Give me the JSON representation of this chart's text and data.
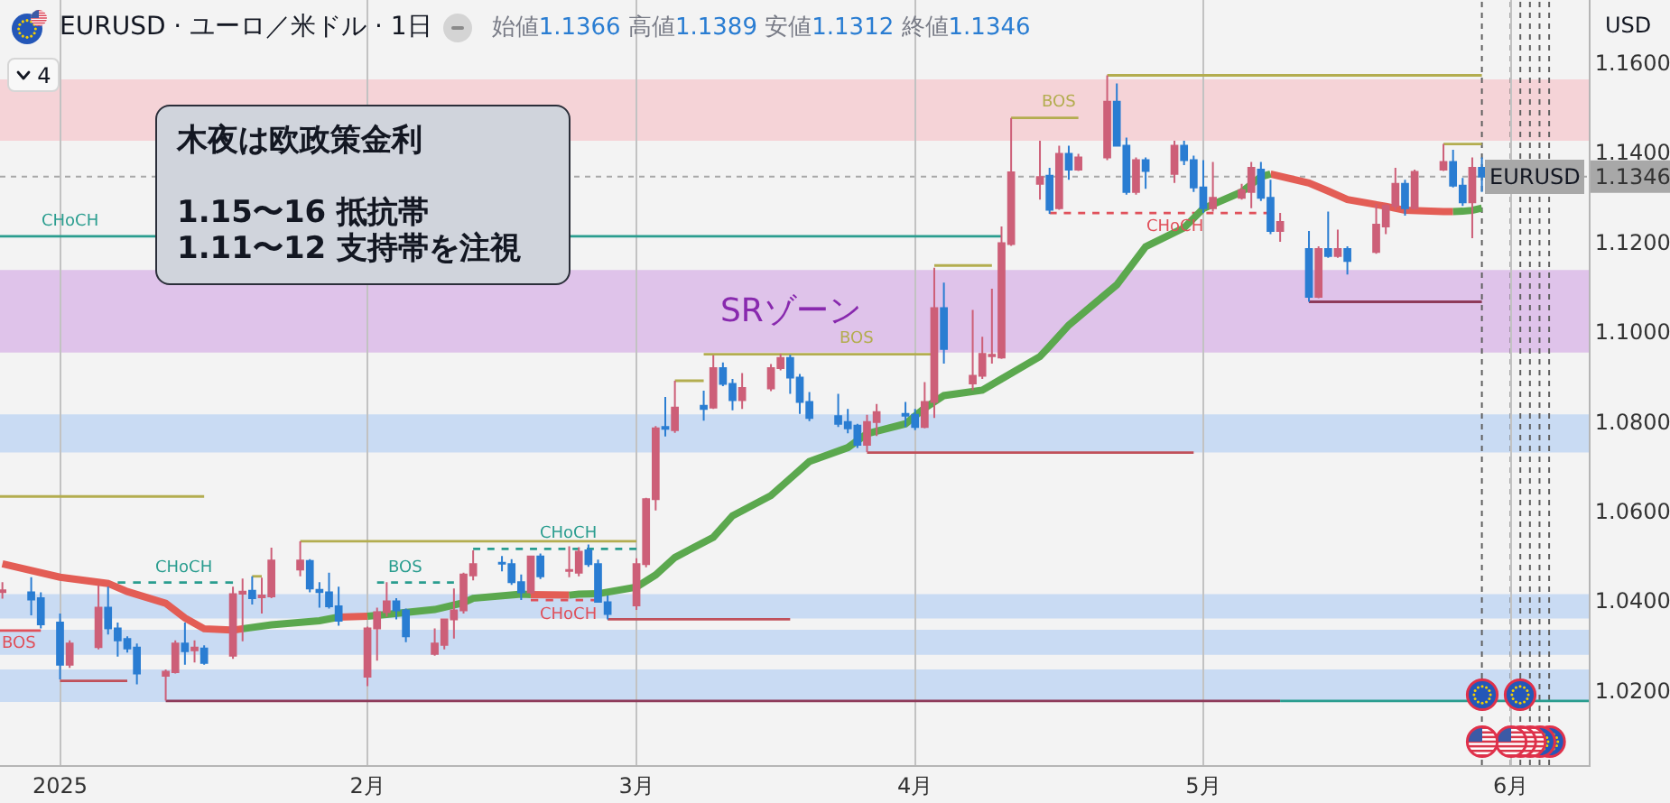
{
  "chart_data": {
    "type": "candlestick",
    "title": "EURUSD · ユーロ／米ドル · 1日",
    "subtitle": "始値1.1366 高値1.1389 安値1.1312 終値1.1346",
    "ylabel": "USD",
    "x": [
      "2024-12-27",
      "2024-12-30",
      "2024-12-31",
      "2025-01-02",
      "2025-01-03",
      "2025-01-06",
      "2025-01-07",
      "2025-01-08",
      "2025-01-09",
      "2025-01-10",
      "2025-01-13",
      "2025-01-14",
      "2025-01-15",
      "2025-01-16",
      "2025-01-17",
      "2025-01-20",
      "2025-01-21",
      "2025-01-22",
      "2025-01-23",
      "2025-01-24",
      "2025-01-27",
      "2025-01-28",
      "2025-01-29",
      "2025-01-30",
      "2025-01-31",
      "2025-02-03",
      "2025-02-04",
      "2025-02-05",
      "2025-02-06",
      "2025-02-07",
      "2025-02-10",
      "2025-02-11",
      "2025-02-12",
      "2025-02-13",
      "2025-02-14",
      "2025-02-17",
      "2025-02-18",
      "2025-02-19",
      "2025-02-20",
      "2025-02-21",
      "2025-02-24",
      "2025-02-25",
      "2025-02-26",
      "2025-02-27",
      "2025-02-28",
      "2025-03-03",
      "2025-03-04",
      "2025-03-05",
      "2025-03-06",
      "2025-03-07",
      "2025-03-10",
      "2025-03-11",
      "2025-03-12",
      "2025-03-13",
      "2025-03-14",
      "2025-03-17",
      "2025-03-18",
      "2025-03-19",
      "2025-03-20",
      "2025-03-21",
      "2025-03-24",
      "2025-03-25",
      "2025-03-26",
      "2025-03-27",
      "2025-03-28",
      "2025-03-31",
      "2025-04-01",
      "2025-04-02",
      "2025-04-03",
      "2025-04-04",
      "2025-04-07",
      "2025-04-08",
      "2025-04-09",
      "2025-04-10",
      "2025-04-11",
      "2025-04-14",
      "2025-04-15",
      "2025-04-16",
      "2025-04-17",
      "2025-04-18",
      "2025-04-21",
      "2025-04-22",
      "2025-04-23",
      "2025-04-24",
      "2025-04-25",
      "2025-04-28",
      "2025-04-29",
      "2025-04-30",
      "2025-05-01",
      "2025-05-02",
      "2025-05-05",
      "2025-05-06",
      "2025-05-07",
      "2025-05-08",
      "2025-05-09",
      "2025-05-12",
      "2025-05-13",
      "2025-05-14",
      "2025-05-15",
      "2025-05-16",
      "2025-05-19",
      "2025-05-20",
      "2025-05-21",
      "2025-05-22",
      "2025-05-23",
      "2025-05-26",
      "2025-05-27",
      "2025-05-28",
      "2025-05-29",
      "2025-05-30"
    ],
    "ohlc": [
      [
        1.042,
        1.0442,
        1.0405,
        1.0424
      ],
      [
        1.0419,
        1.0453,
        1.0368,
        1.0403
      ],
      [
        1.0406,
        1.0419,
        1.0339,
        1.0348
      ],
      [
        1.0352,
        1.0372,
        1.0225,
        1.0258
      ],
      [
        1.0258,
        1.0312,
        1.0251,
        1.0305
      ],
      [
        1.0297,
        1.0435,
        1.0292,
        1.0385
      ],
      [
        1.0385,
        1.0432,
        1.0325,
        1.0339
      ],
      [
        1.0339,
        1.0352,
        1.0276,
        1.0312
      ],
      [
        1.0315,
        1.0321,
        1.0285,
        1.0294
      ],
      [
        1.0296,
        1.0305,
        1.0214,
        1.0238
      ],
      [
        1.0233,
        1.0247,
        1.0178,
        1.0242
      ],
      [
        1.0241,
        1.0312,
        1.0238,
        1.0305
      ],
      [
        1.0305,
        1.0352,
        1.0258,
        1.0288
      ],
      [
        1.029,
        1.0312,
        1.0263,
        1.0296
      ],
      [
        1.0294,
        1.0301,
        1.0258,
        1.0262
      ],
      [
        1.0278,
        1.0432,
        1.0271,
        1.0415
      ],
      [
        1.0416,
        1.045,
        1.031,
        1.0421
      ],
      [
        1.0423,
        1.0455,
        1.0392,
        1.0406
      ],
      [
        1.0408,
        1.0452,
        1.0372,
        1.0412
      ],
      [
        1.041,
        1.0519,
        1.0406,
        1.049
      ],
      [
        1.047,
        1.0533,
        1.0455,
        1.049
      ],
      [
        1.0489,
        1.0493,
        1.0419,
        1.0428
      ],
      [
        1.0425,
        1.0442,
        1.0385,
        1.042
      ],
      [
        1.0419,
        1.0463,
        1.0383,
        1.0388
      ],
      [
        1.0388,
        1.0432,
        1.0345,
        1.0356
      ],
      [
        1.0231,
        1.0343,
        1.021,
        1.0339
      ],
      [
        1.0339,
        1.0385,
        1.0267,
        1.0375
      ],
      [
        1.0375,
        1.0442,
        1.0365,
        1.0399
      ],
      [
        1.0399,
        1.0406,
        1.0359,
        1.0379
      ],
      [
        1.0379,
        1.0383,
        1.0308,
        1.0321
      ],
      [
        1.0282,
        1.0339,
        1.0278,
        1.0305
      ],
      [
        1.0302,
        1.0361,
        1.0292,
        1.0359
      ],
      [
        1.0359,
        1.0428,
        1.0316,
        1.0379
      ],
      [
        1.0379,
        1.0463,
        1.0372,
        1.0459
      ],
      [
        1.0457,
        1.0513,
        1.0446,
        1.0482
      ],
      [
        1.0485,
        1.05,
        1.0466,
        1.0483
      ],
      [
        1.0482,
        1.0493,
        1.0436,
        1.0442
      ],
      [
        1.0442,
        1.0459,
        1.0402,
        1.0419
      ],
      [
        1.0419,
        1.0499,
        1.0415,
        1.0499
      ],
      [
        1.0499,
        1.0506,
        1.0449,
        1.0455
      ],
      [
        1.0467,
        1.0522,
        1.0453,
        1.0469
      ],
      [
        1.0463,
        1.052,
        1.0455,
        1.051
      ],
      [
        1.0513,
        1.0526,
        1.0476,
        1.0482
      ],
      [
        1.0482,
        1.0492,
        1.0396,
        1.0398
      ],
      [
        1.0397,
        1.0412,
        1.0359,
        1.0371
      ],
      [
        1.039,
        1.0495,
        1.038,
        1.0482
      ],
      [
        1.0482,
        1.063,
        1.0475,
        1.0627
      ],
      [
        1.0627,
        1.079,
        1.0602,
        1.0785
      ],
      [
        1.0788,
        1.0855,
        1.0767,
        1.0784
      ],
      [
        1.0781,
        1.0891,
        1.0775,
        1.0831
      ],
      [
        1.0835,
        1.0869,
        1.0802,
        1.0828
      ],
      [
        1.0831,
        1.0948,
        1.0828,
        1.0919
      ],
      [
        1.0919,
        1.0932,
        1.0879,
        1.0884
      ],
      [
        1.0884,
        1.0895,
        1.0825,
        1.0848
      ],
      [
        1.0848,
        1.0908,
        1.0828,
        1.0875
      ],
      [
        1.0874,
        1.0928,
        1.0868,
        1.0919
      ],
      [
        1.0919,
        1.0951,
        1.0914,
        1.0942
      ],
      [
        1.0942,
        1.0949,
        1.0862,
        1.0898
      ],
      [
        1.0898,
        1.0906,
        1.0817,
        1.0844
      ],
      [
        1.0844,
        1.0866,
        1.0801,
        1.0808
      ],
      [
        1.0812,
        1.0862,
        1.0788,
        1.0795
      ],
      [
        1.0799,
        1.0828,
        1.0774,
        1.0785
      ],
      [
        1.0791,
        1.0795,
        1.0741,
        1.0748
      ],
      [
        1.0748,
        1.0815,
        1.0732,
        1.0799
      ],
      [
        1.0799,
        1.0839,
        1.0768,
        1.0821
      ],
      [
        1.0817,
        1.0844,
        1.0788,
        1.0813
      ],
      [
        1.0815,
        1.0828,
        1.0781,
        1.0788
      ],
      [
        1.0788,
        1.0888,
        1.0785,
        1.0844
      ],
      [
        1.0844,
        1.1143,
        1.0808,
        1.1053
      ],
      [
        1.1053,
        1.111,
        1.0929,
        1.0962
      ],
      [
        1.0885,
        1.1049,
        1.087,
        1.0902
      ],
      [
        1.0902,
        1.0989,
        1.0895,
        1.0951
      ],
      [
        1.0946,
        1.1096,
        1.0929,
        1.0949
      ],
      [
        1.0943,
        1.1235,
        1.094,
        1.1198
      ],
      [
        1.1196,
        1.1477,
        1.1192,
        1.1356
      ],
      [
        1.133,
        1.1426,
        1.1295,
        1.1345
      ],
      [
        1.1348,
        1.1366,
        1.1263,
        1.1272
      ],
      [
        1.1276,
        1.1415,
        1.1272,
        1.1397
      ],
      [
        1.1397,
        1.1415,
        1.1339,
        1.1362
      ],
      [
        1.1362,
        1.1397,
        1.1359,
        1.1389
      ],
      [
        1.1389,
        1.1572,
        1.1383,
        1.1513
      ],
      [
        1.1513,
        1.1554,
        1.1413,
        1.1415
      ],
      [
        1.1415,
        1.1433,
        1.1306,
        1.1312
      ],
      [
        1.1312,
        1.1389,
        1.1306,
        1.1383
      ],
      [
        1.1383,
        1.1389,
        1.1319,
        1.1359
      ],
      [
        1.1352,
        1.1426,
        1.1332,
        1.1415
      ],
      [
        1.1415,
        1.1426,
        1.1372,
        1.1383
      ],
      [
        1.1383,
        1.1393,
        1.1312,
        1.1322
      ],
      [
        1.1322,
        1.1383,
        1.1265,
        1.1276
      ],
      [
        1.1276,
        1.1379,
        1.1268,
        1.1299
      ],
      [
        1.1299,
        1.133,
        1.1295,
        1.1316
      ],
      [
        1.1312,
        1.1379,
        1.1276,
        1.1366
      ],
      [
        1.1362,
        1.1379,
        1.1292,
        1.1299
      ],
      [
        1.1299,
        1.1339,
        1.1218,
        1.1225
      ],
      [
        1.1225,
        1.1265,
        1.1201,
        1.1245
      ],
      [
        1.1185,
        1.1225,
        1.1067,
        1.1078
      ],
      [
        1.1078,
        1.1191,
        1.1075,
        1.1185
      ],
      [
        1.1185,
        1.1268,
        1.1165,
        1.1169
      ],
      [
        1.1169,
        1.1228,
        1.1165,
        1.1185
      ],
      [
        1.1185,
        1.1191,
        1.1128,
        1.1158
      ],
      [
        1.1178,
        1.1285,
        1.1174,
        1.1239
      ],
      [
        1.1235,
        1.1285,
        1.1218,
        1.1281
      ],
      [
        1.1281,
        1.1366,
        1.1272,
        1.133
      ],
      [
        1.133,
        1.1339,
        1.1259,
        1.1276
      ],
      [
        1.1276,
        1.1362,
        1.1272,
        1.1357
      ],
      [
        1.1362,
        1.1419,
        1.1359,
        1.1379
      ],
      [
        1.1379,
        1.1406,
        1.1322,
        1.1326
      ],
      [
        1.1326,
        1.1343,
        1.1281,
        1.1289
      ],
      [
        1.1289,
        1.1389,
        1.1209,
        1.1366
      ],
      [
        1.1366,
        1.1389,
        1.1312,
        1.1346
      ]
    ],
    "colors": [
      "#cd5f78",
      "#2a7dd2",
      "#2a7dd2",
      "#2a7dd2",
      "#cd5f78",
      "#cd5f78",
      "#2a7dd2",
      "#2a7dd2",
      "#2a7dd2",
      "#2a7dd2",
      "#cd5f78",
      "#cd5f78",
      "#2a7dd2",
      "#cd5f78",
      "#2a7dd2",
      "#cd5f78",
      "#cd5f78",
      "#2a7dd2",
      "#cd5f78",
      "#cd5f78",
      "#cd5f78",
      "#2a7dd2",
      "#2a7dd2",
      "#2a7dd2",
      "#2a7dd2",
      "#cd5f78",
      "#cd5f78",
      "#cd5f78",
      "#2a7dd2",
      "#2a7dd2",
      "#cd5f78",
      "#cd5f78",
      "#cd5f78",
      "#cd5f78",
      "#cd5f78",
      "#2a7dd2",
      "#2a7dd2",
      "#2a7dd2",
      "#cd5f78",
      "#2a7dd2",
      "#cd5f78",
      "#cd5f78",
      "#2a7dd2",
      "#2a7dd2",
      "#2a7dd2",
      "#cd5f78",
      "#cd5f78",
      "#cd5f78",
      "#2a7dd2",
      "#cd5f78",
      "#2a7dd2",
      "#cd5f78",
      "#2a7dd2",
      "#2a7dd2",
      "#cd5f78",
      "#cd5f78",
      "#cd5f78",
      "#2a7dd2",
      "#2a7dd2",
      "#2a7dd2",
      "#2a7dd2",
      "#2a7dd2",
      "#2a7dd2",
      "#cd5f78",
      "#cd5f78",
      "#2a7dd2",
      "#2a7dd2",
      "#cd5f78",
      "#cd5f78",
      "#2a7dd2",
      "#cd5f78",
      "#cd5f78",
      "#cd5f78",
      "#cd5f78",
      "#cd5f78",
      "#cd5f78",
      "#2a7dd2",
      "#cd5f78",
      "#2a7dd2",
      "#cd5f78",
      "#cd5f78",
      "#2a7dd2",
      "#2a7dd2",
      "#cd5f78",
      "#2a7dd2",
      "#cd5f78",
      "#2a7dd2",
      "#2a7dd2",
      "#2a7dd2",
      "#cd5f78",
      "#cd5f78",
      "#cd5f78",
      "#2a7dd2",
      "#2a7dd2",
      "#cd5f78",
      "#2a7dd2",
      "#cd5f78",
      "#2a7dd2",
      "#cd5f78",
      "#2a7dd2",
      "#cd5f78",
      "#cd5f78",
      "#cd5f78",
      "#2a7dd2",
      "#cd5f78",
      "#cd5f78",
      "#2a7dd2",
      "#2a7dd2",
      "#cd5f78",
      "#2a7dd2"
    ],
    "series": [
      {
        "type": "line",
        "color": "#e35d55",
        "x": [
          "2024-12-27",
          "2025-01-02",
          "2025-01-07",
          "2025-01-09",
          "2025-01-13",
          "2025-01-15",
          "2025-01-17",
          "2025-01-20",
          "2025-01-21",
          "2025-01-24",
          "2025-01-31",
          "2025-02-03",
          "2025-02-12",
          "2025-02-20",
          "2025-02-24",
          "2025-04-01",
          "2025-05-08",
          "2025-05-12",
          "2025-05-14",
          "2025-05-16",
          "2025-05-20",
          "2025-05-22",
          "2025-05-26",
          "2025-05-27"
        ],
        "values": [
          1.0483,
          1.0453,
          1.0439,
          1.0421,
          1.0395,
          1.0362,
          1.0338,
          1.0335,
          1.0338,
          null,
          1.0364,
          1.0366,
          null,
          1.0414,
          1.0413,
          null,
          1.1352,
          1.1332,
          1.1314,
          1.1295,
          1.128,
          1.1271,
          1.1268,
          1.1268
        ]
      },
      {
        "type": "line",
        "color": "#5ba84e",
        "x": [
          "2025-01-21",
          "2025-01-24",
          "2025-01-29",
          "2025-01-31",
          "2025-02-01",
          "2025-02-03",
          "2025-02-05",
          "2025-02-10",
          "2025-02-13",
          "2025-02-14",
          "2025-02-19",
          "2025-02-20",
          "2025-02-21",
          "2025-02-24",
          "2025-02-25",
          "2025-02-27",
          "2025-03-03",
          "2025-03-05",
          "2025-03-07",
          "2025-03-11",
          "2025-03-13",
          "2025-03-17",
          "2025-03-19",
          "2025-03-21",
          "2025-03-25",
          "2025-03-27",
          "2025-03-31",
          "2025-04-02",
          "2025-04-04",
          "2025-04-08",
          "2025-04-10",
          "2025-04-14",
          "2025-04-15",
          "2025-04-17",
          "2025-04-22",
          "2025-04-25",
          "2025-04-29",
          "2025-05-01",
          "2025-05-05",
          "2025-05-07",
          "2025-05-08",
          "2025-05-19",
          "2025-05-27",
          "2025-05-28",
          "2025-05-29",
          "2025-05-30"
        ],
        "values": [
          1.0338,
          1.0347,
          1.0356,
          1.0364,
          null,
          1.0366,
          1.037,
          1.0381,
          1.0396,
          1.0406,
          1.0415,
          1.0414,
          null,
          1.0413,
          1.0415,
          1.0416,
          1.0431,
          1.0458,
          1.0497,
          1.0542,
          1.059,
          1.0635,
          1.0673,
          1.0711,
          1.0742,
          1.0773,
          1.0795,
          1.083,
          1.0858,
          1.087,
          1.0895,
          1.0945,
          1.0968,
          1.1015,
          1.1105,
          1.119,
          1.1232,
          1.1275,
          1.1312,
          1.1346,
          1.1352,
          null,
          1.1268,
          1.1269,
          1.1271,
          1.1276
        ]
      },
      {
        "type": "line",
        "color": "#2a9d8f",
        "x": [
          "2024-12-26T18:00",
          "2025-04-10"
        ],
        "values": [
          1.1213,
          1.1213
        ]
      },
      {
        "type": "line",
        "color": "#b3ad4f",
        "x": [
          "2025-04-21",
          "2025-05-30"
        ],
        "values": [
          1.1572,
          1.1572
        ]
      },
      {
        "type": "line",
        "color": "#b3ad4f",
        "x": [
          "2025-04-11",
          "2025-04-18"
        ],
        "values": [
          1.1477,
          1.1477
        ]
      },
      {
        "type": "line",
        "color": "#b3ad4f",
        "x": [
          "2025-05-26",
          "2025-05-30"
        ],
        "values": [
          1.1419,
          1.1419
        ]
      },
      {
        "type": "line",
        "color": "#e0505a",
        "line_style": "dashed",
        "x": [
          "2025-04-15",
          "2025-05-08"
        ],
        "values": [
          1.1265,
          1.1265
        ]
      },
      {
        "type": "line",
        "color": "#8e3b5a",
        "x": [
          "2025-05-12",
          "2025-05-30"
        ],
        "values": [
          1.1067,
          1.1067
        ]
      },
      {
        "type": "line",
        "color": "#b3ad4f",
        "x": [
          "2025-04-03",
          "2025-04-09"
        ],
        "values": [
          1.1148,
          1.1148
        ]
      },
      {
        "type": "line",
        "color": "#b3ad4f",
        "x": [
          "2025-03-10",
          "2025-04-03"
        ],
        "values": [
          1.095,
          1.095
        ]
      },
      {
        "type": "line",
        "color": "#b3ad4f",
        "x": [
          "2025-03-07",
          "2025-03-10"
        ],
        "values": [
          1.0891,
          1.0891
        ]
      },
      {
        "type": "line",
        "color": "#c0505a",
        "x": [
          "2025-03-27",
          "2025-04-30"
        ],
        "values": [
          1.0731,
          1.0731
        ]
      },
      {
        "type": "line",
        "color": "#c0505a",
        "x": [
          "2025-02-28",
          "2025-03-19"
        ],
        "values": [
          1.0359,
          1.0359
        ]
      },
      {
        "type": "line",
        "color": "#8e3b5a",
        "x": [
          "2025-01-13",
          "2025-05-09"
        ],
        "values": [
          1.0177,
          1.0177
        ]
      },
      {
        "type": "line",
        "color": "#2a9d8f",
        "x": [
          "2025-05-09",
          "2025-06-10T03:00"
        ],
        "values": [
          1.0177,
          1.0177
        ]
      },
      {
        "type": "line",
        "color": "#c0505a",
        "x": [
          "2025-01-02",
          "2025-01-09"
        ],
        "values": [
          1.0222,
          1.0222
        ]
      },
      {
        "type": "line",
        "color": "#e0505a",
        "x": [
          "2024-12-26T18:00",
          "2024-12-31"
        ],
        "values": [
          1.0334,
          1.0334
        ]
      },
      {
        "type": "line",
        "color": "#2a9d8f",
        "line_style": "dashed",
        "x": [
          "2025-01-08",
          "2025-01-20"
        ],
        "values": [
          1.0441,
          1.0441
        ]
      },
      {
        "type": "line",
        "color": "#2a9d8f",
        "line_style": "dashed",
        "x": [
          "2025-02-04",
          "2025-02-12"
        ],
        "values": [
          1.0441,
          1.0441
        ]
      },
      {
        "type": "line",
        "color": "#b3ad4f",
        "x": [
          "2024-12-26T18:00",
          "2025-01-17"
        ],
        "values": [
          1.0633,
          1.0633
        ]
      },
      {
        "type": "line",
        "color": "#b3ad4f",
        "x": [
          "2025-01-27",
          "2025-03-03"
        ],
        "values": [
          1.0533,
          1.0533
        ]
      },
      {
        "type": "line",
        "color": "#b3ad4f",
        "x": [
          "2025-01-22",
          "2025-01-23"
        ],
        "values": [
          1.0455,
          1.0455
        ]
      },
      {
        "type": "line",
        "color": "#2a9d8f",
        "line_style": "dashed",
        "x": [
          "2025-02-14",
          "2025-03-03"
        ],
        "values": [
          1.0516,
          1.0516
        ]
      },
      {
        "type": "line",
        "color": "#e0505a",
        "line_style": "dashed",
        "x": [
          "2025-02-20",
          "2025-02-27"
        ],
        "values": [
          1.0402,
          1.0402
        ]
      }
    ],
    "bands": [
      {
        "axis": "y",
        "from": 1.1426,
        "to": 1.1563,
        "color": "#f5d3d7"
      },
      {
        "axis": "y",
        "from": 1.0954,
        "to": 1.1138,
        "color": "#dfc3ea",
        "label": "SRゾーン"
      },
      {
        "axis": "y",
        "from": 1.0731,
        "to": 1.0816,
        "color": "#c9dbf3"
      },
      {
        "axis": "y",
        "from": 1.0361,
        "to": 1.0415,
        "color": "#c9dbf3"
      },
      {
        "axis": "y",
        "from": 1.028,
        "to": 1.0336,
        "color": "#c9dbf3"
      },
      {
        "axis": "y",
        "from": 1.0175,
        "to": 1.0247,
        "color": "#c9dbf3"
      }
    ],
    "ref_lines": [
      {
        "axis": "y",
        "value": 1.1346,
        "label": "EURUSD",
        "color": "#a8a8a8",
        "line_style": "dotted"
      },
      {
        "axis": "x",
        "value": "2025-05-30",
        "color": "#606060",
        "line_style": "dotted"
      },
      {
        "axis": "x",
        "value": "2025-06-02",
        "color": "#606060",
        "line_style": "dotted"
      },
      {
        "axis": "x",
        "value": "2025-06-03",
        "color": "#606060",
        "line_style": "dotted"
      },
      {
        "axis": "x",
        "value": "2025-06-04",
        "color": "#606060",
        "line_style": "dotted"
      },
      {
        "axis": "x",
        "value": "2025-06-05",
        "color": "#606060",
        "line_style": "dotted"
      },
      {
        "axis": "x",
        "value": "2025-06-06",
        "color": "#606060",
        "line_style": "dotted"
      }
    ],
    "annotations": [
      "木夜は欧政策金利\n\n1.15〜16 抵抗帯\n1.11〜12 支持帯を注視",
      "4",
      {
        "text": "CHoCH",
        "x": "2025-01-03",
        "y": 1.1213
      },
      {
        "text": "BOS",
        "x": "2025-04-16",
        "y": 1.1477
      },
      {
        "text": "CHoCH",
        "x": "2025-04-28",
        "y": 1.1265
      },
      {
        "text": "BOS",
        "x": "2025-03-26",
        "y": 1.095
      },
      {
        "text": "CHoCH",
        "x": "2025-01-15",
        "y": 1.0441
      },
      {
        "text": "BOS",
        "x": "2025-02-07",
        "y": 1.0441
      },
      {
        "text": "CHoCH",
        "x": "2025-02-24",
        "y": 1.0516
      },
      {
        "text": "CHoCH",
        "x": "2025-02-24",
        "y": 1.0402
      },
      {
        "text": "BOS",
        "x": "2024-12-27",
        "y": 1.0334
      }
    ],
    "xlim": [
      "2024-12-26T18:00",
      "2025-06-10T03:00"
    ],
    "xticks": [
      {
        "value": "2025-01-02",
        "label": "2025"
      },
      {
        "value": "2025-02-03",
        "label": "2月"
      },
      {
        "value": "2025-03-03",
        "label": "3月"
      },
      {
        "value": "2025-04-01",
        "label": "4月"
      },
      {
        "value": "2025-05-01",
        "label": "5月"
      },
      {
        "value": "2025-06-02",
        "label": "6月"
      }
    ],
    "ylim": [
      1.0034,
      1.174
    ],
    "yticks": [
      {
        "value": 1.02,
        "label": "1.0200"
      },
      {
        "value": 1.04,
        "label": "1.0400"
      },
      {
        "value": 1.06,
        "label": "1.0600"
      },
      {
        "value": 1.08,
        "label": "1.0800"
      },
      {
        "value": 1.1,
        "label": "1.1000"
      },
      {
        "value": 1.12,
        "label": "1.1200"
      },
      {
        "value": 1.1346,
        "label": "1.1346"
      },
      {
        "value": 1.14,
        "label": "1.1400"
      },
      {
        "value": 1.16,
        "label": "1.1600"
      }
    ],
    "grid": "x"
  }
}
